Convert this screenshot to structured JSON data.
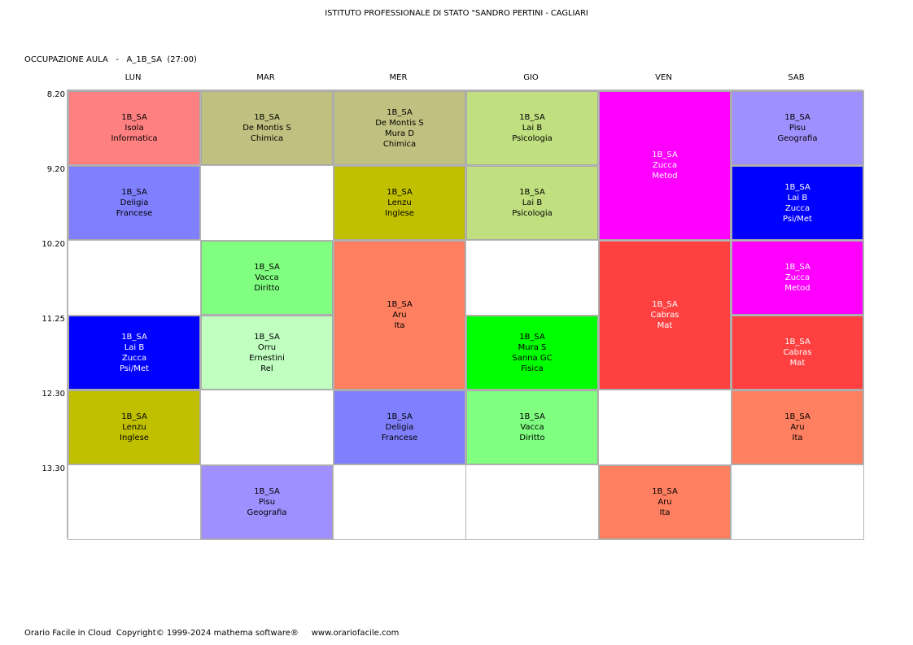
{
  "header": {
    "school": "ISTITUTO PROFESSIONALE DI STATO \"SANDRO PERTINI - CAGLIARI",
    "room_label": "OCCUPAZIONE AULA   -   A_1B_SA  (27:00)"
  },
  "days": [
    "LUN",
    "MAR",
    "MER",
    "GIO",
    "VEN",
    "SAB"
  ],
  "times": [
    "8.20",
    "9.20",
    "10.20",
    "11.25",
    "12.30",
    "13.30"
  ],
  "lessons": [
    {
      "day": 0,
      "slot": 0,
      "span": 1,
      "color": "#ff8080",
      "light": false,
      "lines": [
        "1B_SA",
        "Isola",
        "Informatica"
      ]
    },
    {
      "day": 0,
      "slot": 1,
      "span": 1,
      "color": "#8080ff",
      "light": false,
      "lines": [
        "1B_SA",
        "Deligia",
        "Francese"
      ]
    },
    {
      "day": 0,
      "slot": 3,
      "span": 1,
      "color": "#0000ff",
      "light": true,
      "lines": [
        "1B_SA",
        "Lai B",
        "Zucca",
        "Psi/Met"
      ]
    },
    {
      "day": 0,
      "slot": 4,
      "span": 1,
      "color": "#c0c000",
      "light": false,
      "lines": [
        "1B_SA",
        "Lenzu",
        "Inglese"
      ]
    },
    {
      "day": 1,
      "slot": 0,
      "span": 1,
      "color": "#c0c080",
      "light": false,
      "lines": [
        "1B_SA",
        "De Montis S",
        "Chimica"
      ]
    },
    {
      "day": 1,
      "slot": 2,
      "span": 1,
      "color": "#80ff80",
      "light": false,
      "lines": [
        "1B_SA",
        "Vacca",
        "Diritto"
      ]
    },
    {
      "day": 1,
      "slot": 3,
      "span": 1,
      "color": "#c0ffc0",
      "light": false,
      "lines": [
        "1B_SA",
        "Orru",
        "Ernestini",
        "Rel"
      ]
    },
    {
      "day": 1,
      "slot": 5,
      "span": 1,
      "color": "#a090ff",
      "light": false,
      "lines": [
        "1B_SA",
        "Pisu",
        "Geografia"
      ]
    },
    {
      "day": 2,
      "slot": 0,
      "span": 1,
      "color": "#c0c080",
      "light": false,
      "lines": [
        "1B_SA",
        "De Montis S",
        "Mura D",
        "Chimica"
      ]
    },
    {
      "day": 2,
      "slot": 1,
      "span": 1,
      "color": "#c0c000",
      "light": false,
      "lines": [
        "1B_SA",
        "Lenzu",
        "Inglese"
      ]
    },
    {
      "day": 2,
      "slot": 2,
      "span": 2,
      "color": "#ff8060",
      "light": false,
      "lines": [
        "1B_SA",
        "Aru",
        "Ita"
      ]
    },
    {
      "day": 2,
      "slot": 4,
      "span": 1,
      "color": "#8080ff",
      "light": false,
      "lines": [
        "1B_SA",
        "Deligia",
        "Francese"
      ]
    },
    {
      "day": 3,
      "slot": 0,
      "span": 1,
      "color": "#c0e080",
      "light": false,
      "lines": [
        "1B_SA",
        "Lai B",
        "Psicologia"
      ]
    },
    {
      "day": 3,
      "slot": 1,
      "span": 1,
      "color": "#c0e080",
      "light": false,
      "lines": [
        "1B_SA",
        "Lai B",
        "Psicologia"
      ]
    },
    {
      "day": 3,
      "slot": 3,
      "span": 1,
      "color": "#00ff00",
      "light": false,
      "lines": [
        "1B_SA",
        "Mura S",
        "Sanna GC",
        "Fisica"
      ]
    },
    {
      "day": 3,
      "slot": 4,
      "span": 1,
      "color": "#80ff80",
      "light": false,
      "lines": [
        "1B_SA",
        "Vacca",
        "Diritto"
      ]
    },
    {
      "day": 4,
      "slot": 0,
      "span": 2,
      "color": "#ff00ff",
      "light": true,
      "lines": [
        "1B_SA",
        "Zucca",
        "Metod"
      ]
    },
    {
      "day": 4,
      "slot": 2,
      "span": 2,
      "color": "#ff4040",
      "light": true,
      "lines": [
        "1B_SA",
        "Cabras",
        "Mat"
      ]
    },
    {
      "day": 4,
      "slot": 5,
      "span": 1,
      "color": "#ff8060",
      "light": false,
      "lines": [
        "1B_SA",
        "Aru",
        "Ita"
      ]
    },
    {
      "day": 5,
      "slot": 0,
      "span": 1,
      "color": "#a090ff",
      "light": false,
      "lines": [
        "1B_SA",
        "Pisu",
        "Geografia"
      ]
    },
    {
      "day": 5,
      "slot": 1,
      "span": 1,
      "color": "#0000ff",
      "light": true,
      "lines": [
        "1B_SA",
        "Lai B",
        "Zucca",
        "Psi/Met"
      ]
    },
    {
      "day": 5,
      "slot": 2,
      "span": 1,
      "color": "#ff00ff",
      "light": true,
      "lines": [
        "1B_SA",
        "Zucca",
        "Metod"
      ]
    },
    {
      "day": 5,
      "slot": 3,
      "span": 1,
      "color": "#ff4040",
      "light": true,
      "lines": [
        "1B_SA",
        "Cabras",
        "Mat"
      ]
    },
    {
      "day": 5,
      "slot": 4,
      "span": 1,
      "color": "#ff8060",
      "light": false,
      "lines": [
        "1B_SA",
        "Aru",
        "Ita"
      ]
    }
  ],
  "footer": {
    "text": "Orario Facile in Cloud  Copyright© 1999-2024 mathema software®     www.orariofacile.com"
  }
}
